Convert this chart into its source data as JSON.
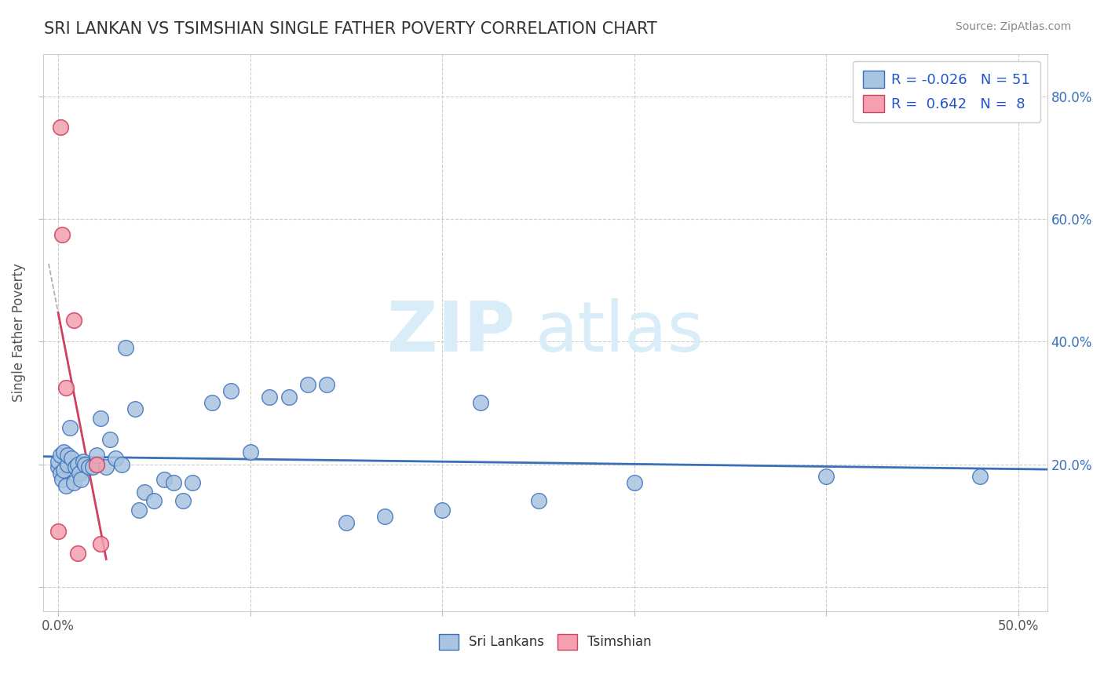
{
  "title": "SRI LANKAN VS TSIMSHIAN SINGLE FATHER POVERTY CORRELATION CHART",
  "source": "Source: ZipAtlas.com",
  "ylabel": "Single Father Poverty",
  "x_ticks": [
    0.0,
    0.1,
    0.2,
    0.3,
    0.4,
    0.5
  ],
  "y_ticks": [
    0.0,
    0.2,
    0.4,
    0.6,
    0.8
  ],
  "xlim": [
    -0.008,
    0.515
  ],
  "ylim": [
    -0.04,
    0.87
  ],
  "sri_lankan_R": -0.026,
  "sri_lankan_N": 51,
  "tsimshian_R": 0.642,
  "tsimshian_N": 8,
  "watermark_zip": "ZIP",
  "watermark_atlas": "atlas",
  "sri_lankan_color": "#a8c4e0",
  "tsimshian_color": "#f4a0b0",
  "sri_lankan_line_color": "#3b6fba",
  "tsimshian_line_color": "#d04060",
  "background_color": "#ffffff",
  "grid_color": "#cccccc",
  "sri_lankans_x": [
    0.0,
    0.0,
    0.001,
    0.001,
    0.002,
    0.003,
    0.003,
    0.004,
    0.005,
    0.005,
    0.006,
    0.007,
    0.008,
    0.009,
    0.01,
    0.011,
    0.012,
    0.013,
    0.014,
    0.016,
    0.018,
    0.02,
    0.022,
    0.025,
    0.027,
    0.03,
    0.033,
    0.035,
    0.04,
    0.042,
    0.045,
    0.05,
    0.055,
    0.06,
    0.065,
    0.07,
    0.08,
    0.09,
    0.1,
    0.11,
    0.12,
    0.13,
    0.14,
    0.15,
    0.17,
    0.2,
    0.22,
    0.25,
    0.3,
    0.4,
    0.48
  ],
  "sri_lankans_y": [
    0.195,
    0.205,
    0.185,
    0.215,
    0.175,
    0.22,
    0.19,
    0.165,
    0.2,
    0.215,
    0.26,
    0.21,
    0.17,
    0.195,
    0.2,
    0.185,
    0.175,
    0.205,
    0.2,
    0.195,
    0.195,
    0.215,
    0.275,
    0.195,
    0.24,
    0.21,
    0.2,
    0.39,
    0.29,
    0.125,
    0.155,
    0.14,
    0.175,
    0.17,
    0.14,
    0.17,
    0.3,
    0.32,
    0.22,
    0.31,
    0.31,
    0.33,
    0.33,
    0.105,
    0.115,
    0.125,
    0.3,
    0.14,
    0.17,
    0.18,
    0.18
  ],
  "tsimshian_x": [
    0.0,
    0.001,
    0.002,
    0.004,
    0.008,
    0.01,
    0.02,
    0.022
  ],
  "tsimshian_y": [
    0.09,
    0.75,
    0.575,
    0.325,
    0.435,
    0.055,
    0.2,
    0.07
  ]
}
